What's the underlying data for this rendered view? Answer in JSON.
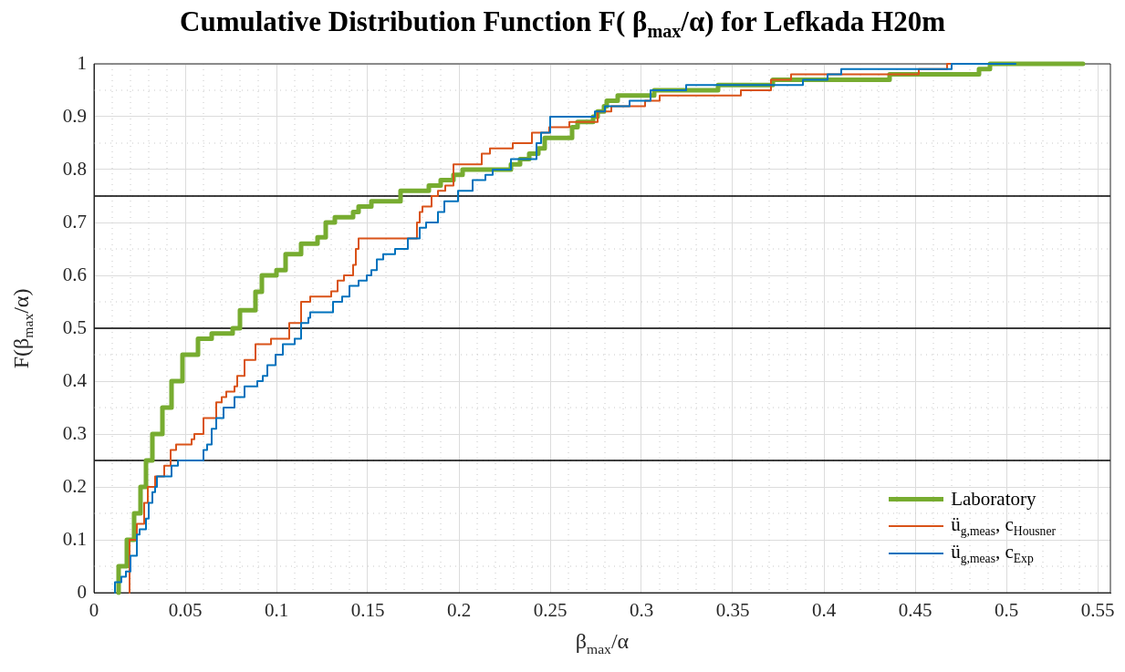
{
  "chart_data": {
    "type": "step",
    "title": "Cumulative Distribution Function F( β$_{max}$/α) for Lefkada H20m",
    "xlabel": "β$_{max}$/α",
    "ylabel": "F(β$_{max}$/α)",
    "xlim": [
      0,
      0.557
    ],
    "xticks": [
      0,
      0.05,
      0.1,
      0.15,
      0.2,
      0.25,
      0.3,
      0.35,
      0.4,
      0.45,
      0.5,
      0.55
    ],
    "ylim": [
      0,
      1
    ],
    "yticks": [
      0,
      0.1,
      0.2,
      0.3,
      0.4,
      0.5,
      0.6,
      0.7,
      0.8,
      0.9,
      1
    ],
    "grid": true,
    "legend": "bottom right",
    "ref_lines": [
      {
        "axis": "y",
        "value": 0.25,
        "color": "#000000"
      },
      {
        "axis": "y",
        "value": 0.5,
        "color": "#000000"
      },
      {
        "axis": "y",
        "value": 0.75,
        "color": "#000000"
      }
    ],
    "series": [
      {
        "name": "Laboratory",
        "color": "#77ac30",
        "x": [
          0.0135,
          0.018,
          0.022,
          0.0255,
          0.0285,
          0.032,
          0.0375,
          0.0425,
          0.0485,
          0.057,
          0.0645,
          0.076,
          0.08,
          0.0885,
          0.092,
          0.1,
          0.105,
          0.1135,
          0.1225,
          0.127,
          0.132,
          0.142,
          0.145,
          0.152,
          0.168,
          0.1835,
          0.19,
          0.197,
          0.202,
          0.2285,
          0.2335,
          0.2385,
          0.2435,
          0.247,
          0.262,
          0.265,
          0.2735,
          0.276,
          0.2795,
          0.281,
          0.287,
          0.307,
          0.342,
          0.372,
          0.436,
          0.485,
          0.491,
          0.542
        ],
        "values": [
          0,
          0.05,
          0.1,
          0.15,
          0.2,
          0.25,
          0.3,
          0.35,
          0.4,
          0.45,
          0.48,
          0.49,
          0.5,
          0.534,
          0.569,
          0.6,
          0.61,
          0.64,
          0.66,
          0.672,
          0.7,
          0.71,
          0.72,
          0.73,
          0.74,
          0.76,
          0.77,
          0.78,
          0.79,
          0.8,
          0.81,
          0.82,
          0.83,
          0.84,
          0.86,
          0.88,
          0.89,
          0.9,
          0.91,
          0.92,
          0.93,
          0.94,
          0.95,
          0.96,
          0.97,
          0.98,
          0.99,
          1
        ]
      },
      {
        "name": "ü$_{g,meas}$,  c$_{Housner}$",
        "color": "#d95319",
        "x": [
          0.0195,
          0.0235,
          0.0275,
          0.0295,
          0.0335,
          0.0385,
          0.042,
          0.045,
          0.0535,
          0.055,
          0.06,
          0.067,
          0.07,
          0.0725,
          0.077,
          0.0785,
          0.0825,
          0.0885,
          0.097,
          0.107,
          0.1135,
          0.1185,
          0.13,
          0.1335,
          0.137,
          0.142,
          0.1435,
          0.145,
          0.177,
          0.1785,
          0.18,
          0.185,
          0.1885,
          0.1925,
          0.197,
          0.2125,
          0.217,
          0.2295,
          0.24,
          0.2495,
          0.2605,
          0.276,
          0.2835,
          0.302,
          0.31,
          0.3545,
          0.371,
          0.382,
          0.452,
          0.4675,
          0.492
        ],
        "values": [
          0,
          0.1,
          0.13,
          0.17,
          0.2,
          0.22,
          0.24,
          0.27,
          0.28,
          0.29,
          0.3,
          0.33,
          0.36,
          0.37,
          0.38,
          0.39,
          0.41,
          0.44,
          0.47,
          0.48,
          0.51,
          0.55,
          0.56,
          0.57,
          0.59,
          0.6,
          0.62,
          0.65,
          0.67,
          0.7,
          0.72,
          0.73,
          0.75,
          0.76,
          0.77,
          0.81,
          0.83,
          0.84,
          0.85,
          0.87,
          0.88,
          0.89,
          0.91,
          0.92,
          0.93,
          0.94,
          0.95,
          0.97,
          0.98,
          0.99,
          1
        ]
      },
      {
        "name": "ü$_{g,meas}$,  c$_{Exp}$",
        "color": "#0072bd",
        "x": [
          0.0115,
          0.0115,
          0.015,
          0.0175,
          0.02,
          0.0235,
          0.025,
          0.0285,
          0.03,
          0.032,
          0.0335,
          0.0345,
          0.0425,
          0.046,
          0.06,
          0.062,
          0.0645,
          0.067,
          0.071,
          0.077,
          0.0825,
          0.0895,
          0.0925,
          0.095,
          0.0995,
          0.1035,
          0.11,
          0.1135,
          0.1175,
          0.1185,
          0.131,
          0.136,
          0.14,
          0.145,
          0.1495,
          0.152,
          0.155,
          0.1585,
          0.165,
          0.172,
          0.1785,
          0.182,
          0.1885,
          0.192,
          0.1995,
          0.2075,
          0.2145,
          0.2185,
          0.2285,
          0.2425,
          0.245,
          0.25,
          0.2745,
          0.28,
          0.2935,
          0.305,
          0.3245,
          0.3885,
          0.402,
          0.4095,
          0.47,
          0.505
        ],
        "values": [
          0,
          0.01,
          0.02,
          0.03,
          0.04,
          0.07,
          0.11,
          0.12,
          0.14,
          0.17,
          0.19,
          0.2,
          0.22,
          0.24,
          0.25,
          0.27,
          0.28,
          0.31,
          0.33,
          0.35,
          0.37,
          0.39,
          0.4,
          0.41,
          0.43,
          0.45,
          0.47,
          0.48,
          0.51,
          0.52,
          0.53,
          0.55,
          0.56,
          0.58,
          0.59,
          0.6,
          0.61,
          0.63,
          0.64,
          0.65,
          0.67,
          0.69,
          0.7,
          0.72,
          0.74,
          0.76,
          0.78,
          0.79,
          0.8,
          0.82,
          0.85,
          0.87,
          0.9,
          0.91,
          0.92,
          0.93,
          0.95,
          0.96,
          0.97,
          0.98,
          0.99,
          1
        ]
      }
    ]
  }
}
